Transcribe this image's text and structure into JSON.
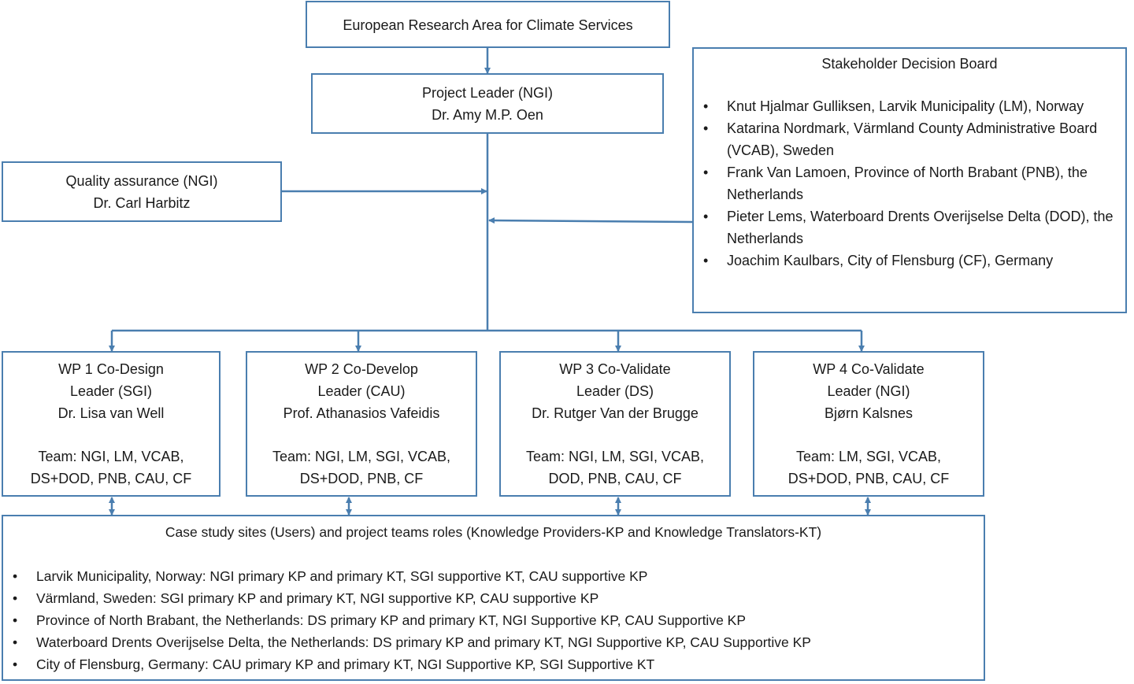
{
  "top": {
    "title": "European Research Area for Climate Services"
  },
  "project_leader": {
    "line1": "Project Leader (NGI)",
    "line2": "Dr. Amy M.P. Oen"
  },
  "quality_assurance": {
    "line1": "Quality assurance (NGI)",
    "line2": "Dr. Carl Harbitz"
  },
  "stakeholder_board": {
    "title": "Stakeholder Decision Board",
    "items": [
      "Knut Hjalmar Gulliksen, Larvik Municipality (LM), Norway",
      "Katarina Nordmark, Värmland County Administrative Board (VCAB), Sweden",
      "Frank Van Lamoen, Province of North Brabant (PNB), the Netherlands",
      "Pieter Lems, Waterboard Drents Overijselse Delta (DOD), the Netherlands",
      "Joachim Kaulbars, City of Flensburg (CF), Germany"
    ]
  },
  "work_packages": [
    {
      "title": "WP 1 Co-Design",
      "leader": "Leader (SGI)",
      "name": "Dr. Lisa van Well",
      "team1": "Team: NGI, LM, VCAB,",
      "team2": "DS+DOD, PNB, CAU, CF"
    },
    {
      "title": "WP 2 Co-Develop",
      "leader": "Leader (CAU)",
      "name": "Prof. Athanasios Vafeidis",
      "team1": "Team: NGI, LM, SGI, VCAB,",
      "team2": "DS+DOD, PNB, CF"
    },
    {
      "title": "WP 3 Co-Validate",
      "leader": "Leader (DS)",
      "name": "Dr. Rutger Van der Brugge",
      "team1": "Team: NGI, LM, SGI, VCAB,",
      "team2": "DOD, PNB, CAU, CF"
    },
    {
      "title": "WP 4 Co-Validate",
      "leader": "Leader (NGI)",
      "name": "Bjørn Kalsnes",
      "team1": "Team: LM, SGI, VCAB,",
      "team2": "DS+DOD, PNB, CAU, CF"
    }
  ],
  "case_studies": {
    "title": "Case study sites (Users) and project teams roles (Knowledge Providers-KP and Knowledge Translators-KT)",
    "items": [
      "Larvik Municipality, Norway:  NGI primary KP and primary KT, SGI supportive KT, CAU supportive KP",
      "Värmland, Sweden:  SGI primary KP and primary KT, NGI supportive KP, CAU supportive KP",
      "Province of North Brabant, the Netherlands:  DS primary KP and primary KT, NGI Supportive KP, CAU Supportive KP",
      "Waterboard Drents Overijselse Delta, the Netherlands: DS primary KP and primary KT, NGI Supportive KP, CAU Supportive KP",
      "City of Flensburg, Germany:  CAU primary KP and primary KT, NGI Supportive KP, SGI Supportive KT"
    ]
  },
  "colors": {
    "border": "#4a7eaf",
    "text": "#1a1a1a"
  }
}
